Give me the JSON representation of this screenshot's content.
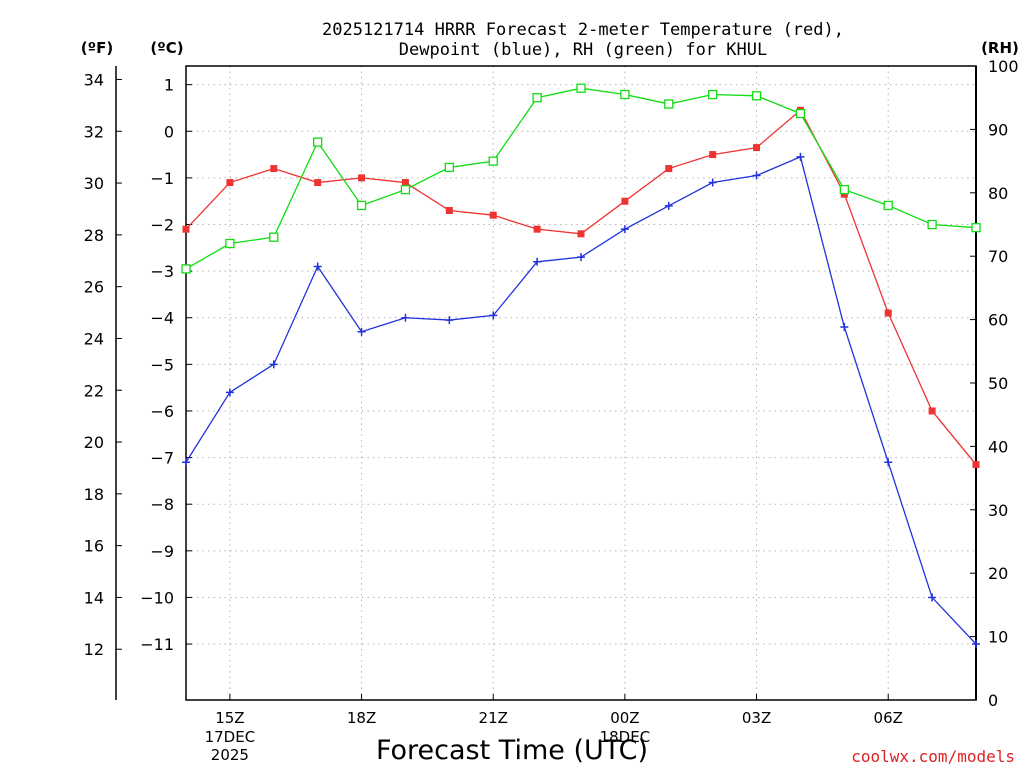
{
  "chart_data": {
    "type": "line",
    "title_line1": "2025121714 HRRR Forecast 2-meter Temperature (red),",
    "title_line2": "Dewpoint (blue), RH (green) for KHUL",
    "unit_f": "(ºF)",
    "unit_c": "(ºC)",
    "unit_rh": "(RH)",
    "xlabel": "Forecast Time (UTC)",
    "credit": "coolwx.com/models",
    "hours": [
      14,
      15,
      16,
      17,
      18,
      19,
      20,
      21,
      22,
      23,
      24,
      25,
      26,
      27,
      28,
      29,
      30,
      31,
      32
    ],
    "x_range_hours": [
      14,
      32
    ],
    "x_ticks": [
      {
        "hour": 15,
        "label": "15Z",
        "sub1": "17DEC",
        "sub2": "2025"
      },
      {
        "hour": 18,
        "label": "18Z"
      },
      {
        "hour": 21,
        "label": "21Z"
      },
      {
        "hour": 24,
        "label": "00Z",
        "sub1": "18DEC"
      },
      {
        "hour": 27,
        "label": "03Z"
      },
      {
        "hour": 30,
        "label": "06Z"
      }
    ],
    "c_range": [
      -12.2,
      1.4
    ],
    "c_ticks": [
      1,
      0,
      -1,
      -2,
      -3,
      -4,
      -5,
      -6,
      -7,
      -8,
      -9,
      -10,
      -11
    ],
    "f_ticks": [
      34,
      32,
      30,
      28,
      26,
      24,
      22,
      20,
      18,
      16,
      14,
      12
    ],
    "rh_range": [
      0,
      100
    ],
    "rh_ticks": [
      0,
      10,
      20,
      30,
      40,
      50,
      60,
      70,
      80,
      90,
      100
    ],
    "series": [
      {
        "name": "Temperature",
        "unit": "C",
        "color": "#ee3333",
        "marker": "square",
        "values": [
          -2.1,
          -1.1,
          -0.8,
          -1.1,
          -1.0,
          -1.1,
          -1.7,
          -1.8,
          -2.1,
          -2.2,
          -1.5,
          -0.8,
          -0.5,
          -0.35,
          0.45,
          -1.35,
          -3.9,
          -6.0,
          -7.15
        ]
      },
      {
        "name": "Dewpoint",
        "unit": "C",
        "color": "#2233dd",
        "marker": "plus",
        "values": [
          -7.1,
          -5.6,
          -5.0,
          -2.9,
          -4.3,
          -4.0,
          -4.05,
          -3.95,
          -2.8,
          -2.7,
          -2.1,
          -1.6,
          -1.1,
          -0.95,
          -0.55,
          -4.2,
          -7.1,
          -10.0,
          -11.0
        ]
      },
      {
        "name": "RH",
        "unit": "%",
        "color": "#11dd11",
        "marker": "open-square",
        "values": [
          68,
          72,
          73,
          88,
          78,
          80.5,
          84,
          85,
          95,
          96.5,
          95.5,
          94,
          95.5,
          95.3,
          92.5,
          80.5,
          78,
          75,
          74.5
        ]
      }
    ]
  }
}
